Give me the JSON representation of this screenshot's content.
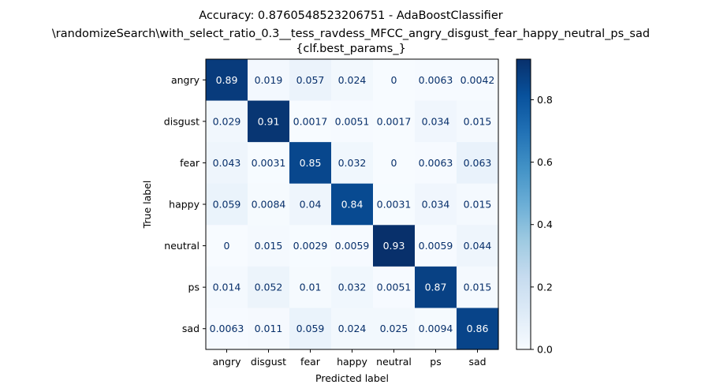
{
  "chart_data": {
    "type": "heatmap",
    "title_lines": [
      "Accuracy: 0.8760548523206751 - AdaBoostClassifier",
      "\\randomizeSearch\\with_select_ratio_0.3__tess_ravdess_MFCC_angry_disgust_fear_happy_neutral_ps_sad",
      "{clf.best_params_}"
    ],
    "xlabel": "Predicted label",
    "ylabel": "True label",
    "x_categories": [
      "angry",
      "disgust",
      "fear",
      "happy",
      "neutral",
      "ps",
      "sad"
    ],
    "y_categories": [
      "angry",
      "disgust",
      "fear",
      "happy",
      "neutral",
      "ps",
      "sad"
    ],
    "values": [
      [
        0.89,
        0.019,
        0.057,
        0.024,
        0,
        0.0063,
        0.0042
      ],
      [
        0.029,
        0.91,
        0.0017,
        0.0051,
        0.0017,
        0.034,
        0.015
      ],
      [
        0.043,
        0.0031,
        0.85,
        0.032,
        0,
        0.0063,
        0.063
      ],
      [
        0.059,
        0.0084,
        0.04,
        0.84,
        0.0031,
        0.034,
        0.015
      ],
      [
        0,
        0.015,
        0.0029,
        0.0059,
        0.93,
        0.0059,
        0.044
      ],
      [
        0.014,
        0.052,
        0.01,
        0.032,
        0.0051,
        0.87,
        0.015
      ],
      [
        0.0063,
        0.011,
        0.059,
        0.024,
        0.025,
        0.0094,
        0.86
      ]
    ],
    "value_labels": [
      [
        "0.89",
        "0.019",
        "0.057",
        "0.024",
        "0",
        "0.0063",
        "0.0042"
      ],
      [
        "0.029",
        "0.91",
        "0.0017",
        "0.0051",
        "0.0017",
        "0.034",
        "0.015"
      ],
      [
        "0.043",
        "0.0031",
        "0.85",
        "0.032",
        "0",
        "0.0063",
        "0.063"
      ],
      [
        "0.059",
        "0.0084",
        "0.04",
        "0.84",
        "0.0031",
        "0.034",
        "0.015"
      ],
      [
        "0",
        "0.015",
        "0.0029",
        "0.0059",
        "0.93",
        "0.0059",
        "0.044"
      ],
      [
        "0.014",
        "0.052",
        "0.01",
        "0.032",
        "0.0051",
        "0.87",
        "0.015"
      ],
      [
        "0.0063",
        "0.011",
        "0.059",
        "0.024",
        "0.025",
        "0.0094",
        "0.86"
      ]
    ],
    "colormap": "Blues",
    "colorbar": {
      "range": [
        0,
        0.93
      ],
      "ticks": [
        0.0,
        0.2,
        0.4,
        0.6,
        0.8
      ],
      "tick_labels": [
        "0.0",
        "0.2",
        "0.4",
        "0.6",
        "0.8"
      ]
    },
    "grid": false
  }
}
